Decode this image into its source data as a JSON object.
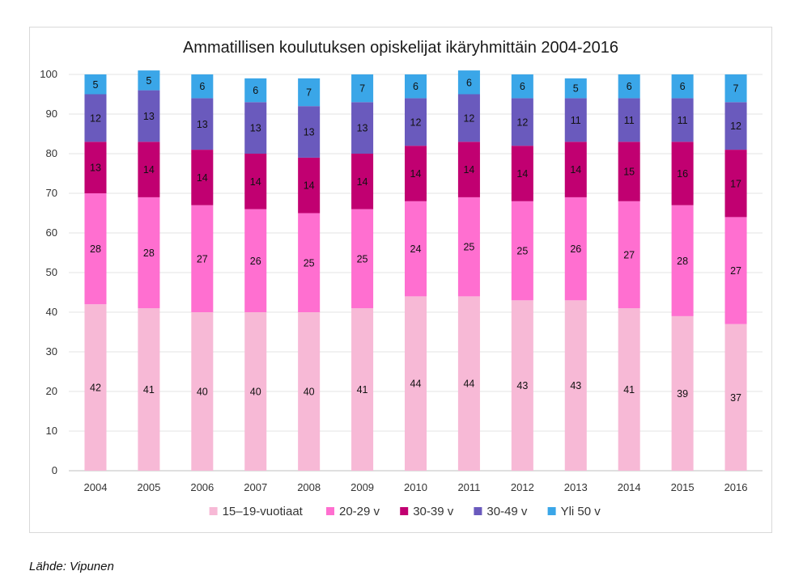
{
  "chart_data": {
    "type": "bar",
    "stacked": true,
    "title": "Ammatillisen koulutuksen opiskelijat ikäryhmittäin 2004-2016",
    "xlabel": "",
    "ylabel": "",
    "ylim": [
      0,
      100
    ],
    "yticks": [
      0,
      10,
      20,
      30,
      40,
      50,
      60,
      70,
      80,
      90,
      100
    ],
    "grid": true,
    "legend_position": "bottom",
    "categories": [
      "2004",
      "2005",
      "2006",
      "2007",
      "2008",
      "2009",
      "2010",
      "2011",
      "2012",
      "2013",
      "2014",
      "2015",
      "2016"
    ],
    "series": [
      {
        "name": "15–19-vuotiaat",
        "color": "#f7b9d6",
        "values": [
          42,
          41,
          40,
          40,
          40,
          41,
          44,
          44,
          43,
          43,
          41,
          39,
          37
        ]
      },
      {
        "name": "20-29 v",
        "color": "#ff6fd0",
        "values": [
          28,
          28,
          27,
          26,
          25,
          25,
          24,
          25,
          25,
          26,
          27,
          28,
          27
        ]
      },
      {
        "name": "30-39 v",
        "color": "#c10071",
        "values": [
          13,
          14,
          14,
          14,
          14,
          14,
          14,
          14,
          14,
          14,
          15,
          16,
          17
        ]
      },
      {
        "name": "30-49 v",
        "color": "#6a5abd",
        "values": [
          12,
          13,
          13,
          13,
          13,
          13,
          12,
          12,
          12,
          11,
          11,
          11,
          12
        ]
      },
      {
        "name": "Yli 50 v",
        "color": "#3aa6e8",
        "values": [
          5,
          5,
          6,
          6,
          7,
          7,
          6,
          6,
          6,
          5,
          6,
          6,
          7
        ]
      }
    ]
  },
  "source": "Lähde: Vipunen"
}
